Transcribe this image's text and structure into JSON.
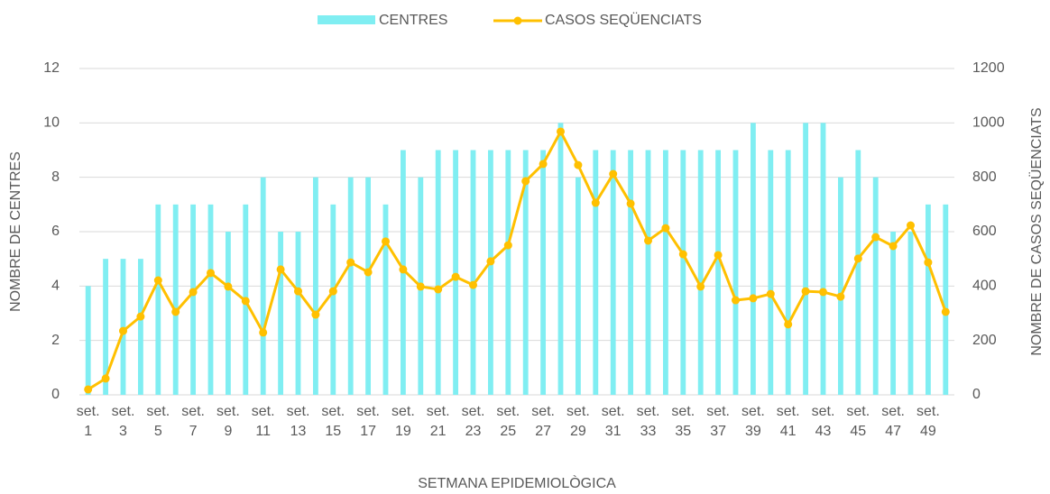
{
  "chart_data": {
    "type": "bar-line",
    "categories": [
      "set. 1",
      null,
      "set. 3",
      null,
      "set. 5",
      null,
      "set. 7",
      null,
      "set. 9",
      null,
      "set. 11",
      null,
      "set. 13",
      null,
      "set. 15",
      null,
      "set. 17",
      null,
      "set. 19",
      null,
      "set. 21",
      null,
      "set. 23",
      null,
      "set. 25",
      null,
      "set. 27",
      null,
      "set. 29",
      null,
      "set. 31",
      null,
      "set. 33",
      null,
      "set. 35",
      null,
      "set. 37",
      null,
      "set. 39",
      null,
      "set. 41",
      null,
      "set. 43",
      null,
      "set. 45",
      null,
      "set. 47",
      null,
      "set. 49",
      null
    ],
    "series": [
      {
        "name": "CENTRES",
        "type": "bar",
        "color": "#80eef2",
        "values": [
          4,
          5,
          5,
          5,
          7,
          7,
          7,
          7,
          6,
          7,
          8,
          6,
          6,
          8,
          7,
          8,
          8,
          7,
          9,
          8,
          9,
          9,
          9,
          9,
          9,
          9,
          9,
          10,
          8,
          9,
          9,
          9,
          9,
          9,
          9,
          9,
          9,
          9,
          10,
          9,
          9,
          10,
          10,
          8,
          9,
          8,
          6,
          6,
          7,
          7
        ]
      },
      {
        "name": "CASOS SEQÜENCIATS",
        "type": "line",
        "axis": "y2",
        "color": "#ffc000",
        "values": [
          20,
          60,
          235,
          288,
          421,
          305,
          378,
          448,
          398,
          345,
          229,
          461,
          381,
          295,
          381,
          487,
          451,
          564,
          461,
          398,
          388,
          434,
          404,
          491,
          550,
          786,
          849,
          968,
          845,
          706,
          812,
          703,
          567,
          613,
          517,
          398,
          514,
          348,
          355,
          371,
          259,
          381,
          378,
          361,
          501,
          580,
          547,
          623,
          487,
          305
        ]
      }
    ],
    "ylim": [
      0,
      12
    ],
    "yticks": [
      0,
      2,
      4,
      6,
      8,
      10,
      12
    ],
    "y2lim": [
      0,
      1200
    ],
    "y2ticks": [
      0,
      200,
      400,
      600,
      800,
      1000,
      1200
    ],
    "ylabel": "NOMBRE DE CENTRES",
    "y2label": "NOMBRE DE CASOS SEQÜENCIATS",
    "xlabel": "SETMANA EPIDEMIOLÒGICA",
    "grid": true,
    "legend": "top"
  }
}
